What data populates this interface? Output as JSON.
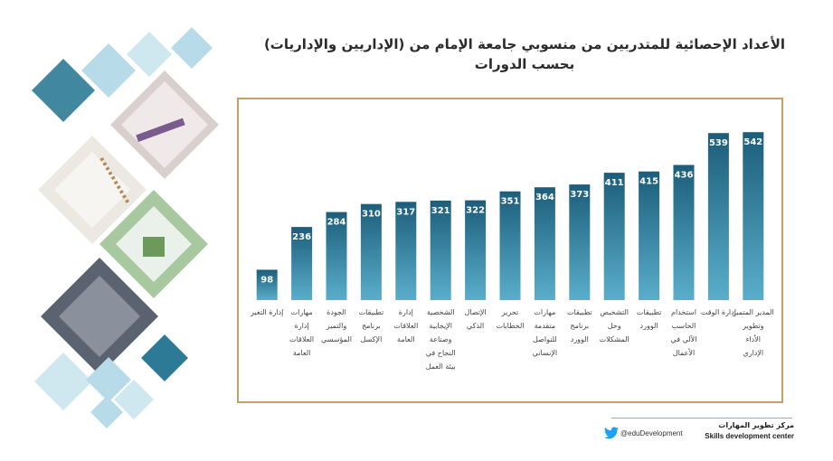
{
  "header": {
    "title_line1": "الأعداد الإحصائية للمتدربين من منسوبي جامعة الإمام من (الإداريين والإداريات)",
    "title_line2": "بحسب الدورات"
  },
  "chart_data": {
    "type": "bar",
    "categories": [
      [
        "إدارة التغير"
      ],
      [
        "مهارات",
        "إدارة",
        "العلاقات",
        "العامة"
      ],
      [
        "الجودة",
        "والتميز",
        "المؤسسي"
      ],
      [
        "تطبيقات",
        "برنامج",
        "الإكسل"
      ],
      [
        "إدارة",
        "العلاقات",
        "العامة"
      ],
      [
        "الشخصية",
        "الإيجابية",
        "وصناعة",
        "النجاح في",
        "بيئة العمل"
      ],
      [
        "الإتصال",
        "الذكي"
      ],
      [
        "تحرير",
        "الخطابات"
      ],
      [
        "مهارات",
        "متقدمة",
        "للتواصل",
        "الإنساني"
      ],
      [
        "تطبيقات",
        "برنامج",
        "الوورد"
      ],
      [
        "التشخيص",
        "وحل",
        "المشكلات"
      ],
      [
        "تطبيقات",
        "الوورد"
      ],
      [
        "استخدام",
        "الحاسب",
        "الآلي في",
        "الأعمال"
      ],
      [
        "إدارة الوقت"
      ],
      [
        "المدير المتميز",
        "وتطوير",
        "الأداء",
        "الإداري"
      ]
    ],
    "values": [
      98,
      236,
      284,
      310,
      317,
      321,
      322,
      351,
      364,
      373,
      411,
      415,
      436,
      539,
      542
    ],
    "ylim": [
      0,
      560
    ],
    "grid": false,
    "colors": {
      "bar_top": "#1c5d7a",
      "bar_bottom": "#5aaecb",
      "label": "#ffffff",
      "frame": "#c4a067"
    }
  },
  "footer": {
    "twitter_icon": "twitter-bird-icon",
    "handle": "@eduDevelopment",
    "org_arabic": "مركز تطوير المهارات",
    "org_english": "Skills development center"
  }
}
